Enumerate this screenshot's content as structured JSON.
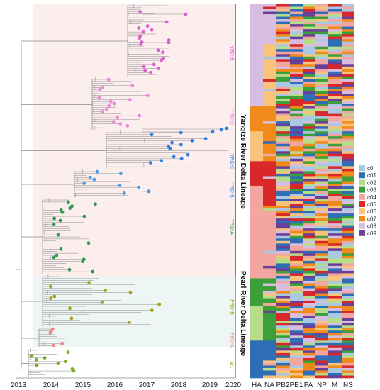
{
  "x_axis": {
    "years": [
      "2013",
      "2014",
      "2015",
      "2016",
      "2017",
      "2018",
      "2019",
      "2020"
    ]
  },
  "clades": {
    "yrd_e": "YRD-E",
    "yrd_d": "YRD-D",
    "yrd_c": "YRD-C",
    "yrd_b": "YRD-B",
    "yrd_a": "YRD-A",
    "prd_b": "PRD-B",
    "prd_a": "PRD-A",
    "w1": "w1"
  },
  "lineages": {
    "yangtze": "Yangtze River Delta Lineage",
    "pearl": "Pearl River Delta Lineage"
  },
  "segments": [
    "HA",
    "NA",
    "PB2",
    "PB1",
    "PA",
    "NP",
    "M",
    "NS"
  ],
  "legend": {
    "items": [
      {
        "label": "c0",
        "color": "#aac8e4"
      },
      {
        "label": "c01",
        "color": "#2f6eb5"
      },
      {
        "label": "c02",
        "color": "#b7dc8a"
      },
      {
        "label": "c03",
        "color": "#3d9f3a"
      },
      {
        "label": "c04",
        "color": "#f3a6a0"
      },
      {
        "label": "c05",
        "color": "#d8282a"
      },
      {
        "label": "c06",
        "color": "#f8c37a"
      },
      {
        "label": "c07",
        "color": "#f08a1a"
      },
      {
        "label": "c08",
        "color": "#d7bde0"
      },
      {
        "label": "c09",
        "color": "#6a3f98"
      }
    ]
  },
  "colors": {
    "yrd_e": "#d85fcf",
    "yrd_d": "#ee86d8",
    "yrd_c": "#2f80e0",
    "yrd_b": "#4a9be8",
    "yrd_a": "#2e9a4e",
    "prd_b": "#a9a21a",
    "prd_a": "#ec8a88",
    "w1": "#7aae1e",
    "shade_yrd": "#fdeeee",
    "shade_prd": "#eef6f5",
    "bar_yrd_upper": "#c060d0",
    "bar_yrd_mid": "#3f8fe0",
    "bar_yrd_lower": "#3aa35a",
    "bar_prd": "#9fbf22"
  }
}
